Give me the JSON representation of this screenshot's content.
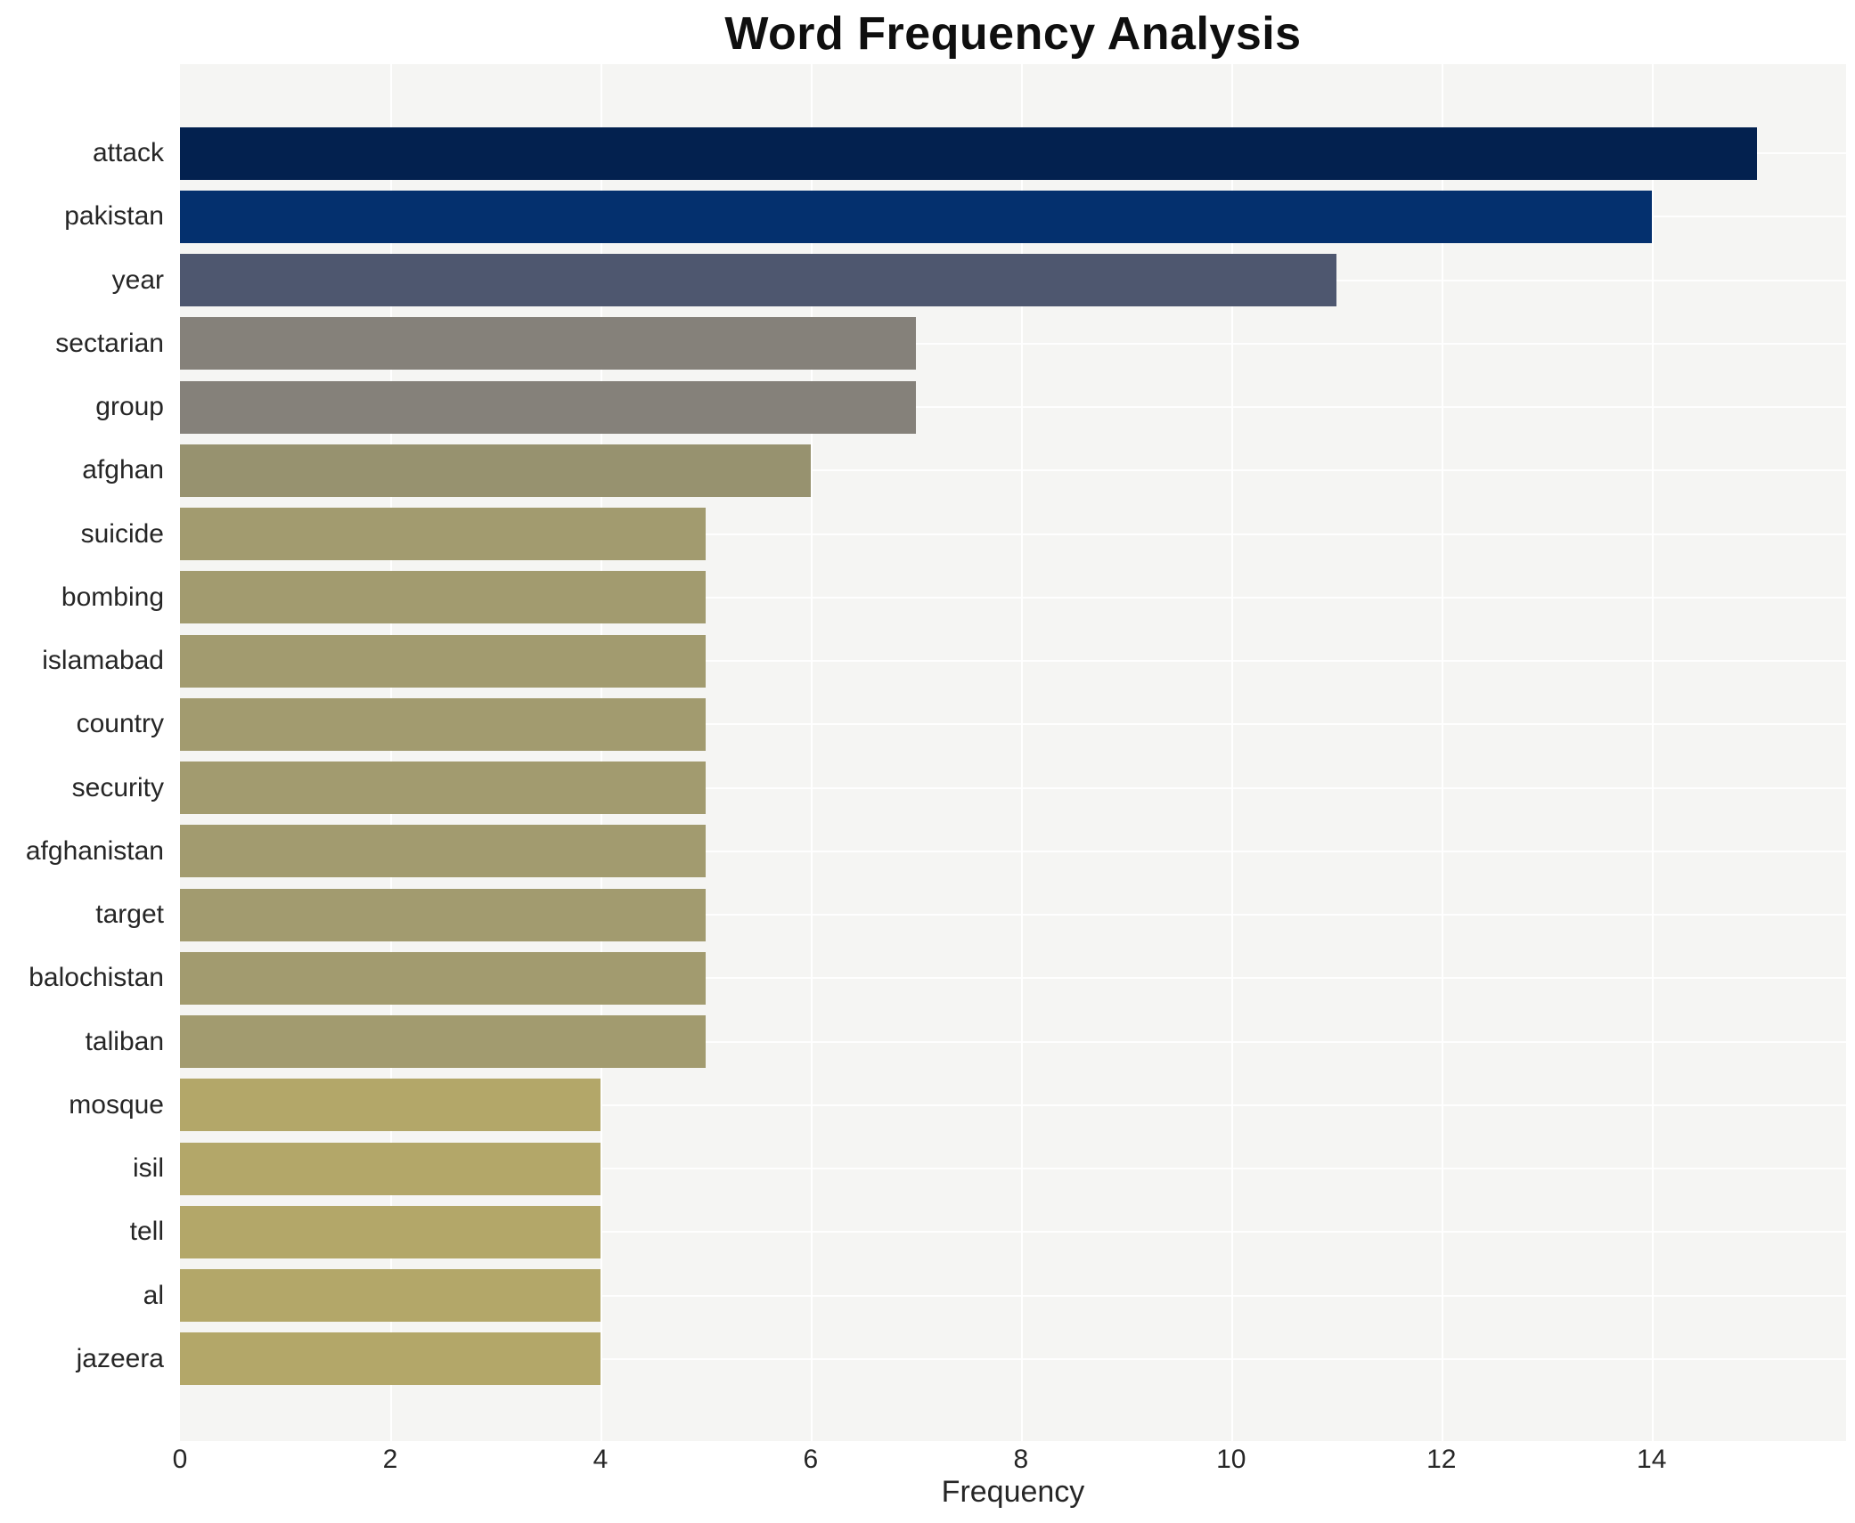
{
  "chart_data": {
    "type": "bar",
    "orientation": "horizontal",
    "title": "Word Frequency Analysis",
    "xlabel": "Frequency",
    "ylabel": "",
    "categories": [
      "attack",
      "pakistan",
      "year",
      "sectarian",
      "group",
      "afghan",
      "suicide",
      "bombing",
      "islamabad",
      "country",
      "security",
      "afghanistan",
      "target",
      "balochistan",
      "taliban",
      "mosque",
      "isil",
      "tell",
      "al",
      "jazeera"
    ],
    "values": [
      15,
      14,
      11,
      7,
      7,
      6,
      5,
      5,
      5,
      5,
      5,
      5,
      5,
      5,
      5,
      4,
      4,
      4,
      4,
      4
    ],
    "bar_colors": [
      "#03214f",
      "#04306e",
      "#4e576f",
      "#85817a",
      "#85817a",
      "#97926f",
      "#a29b6f",
      "#a29b6f",
      "#a29b6f",
      "#a29b6f",
      "#a29b6f",
      "#a29b6f",
      "#a29b6f",
      "#a29b6f",
      "#a29b6f",
      "#b3a769",
      "#b3a769",
      "#b3a769",
      "#b3a769",
      "#b3a769"
    ],
    "xlim": [
      0,
      15.85
    ],
    "xticks": [
      0,
      2,
      4,
      6,
      8,
      10,
      12,
      14
    ],
    "grid": true,
    "legend": "none",
    "plot_background": "#f5f5f3",
    "grid_color": "#ffffff",
    "title_color": "#0f0f0f",
    "tick_color": "#262626"
  }
}
